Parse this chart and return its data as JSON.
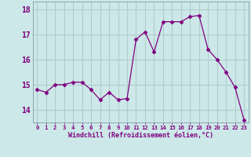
{
  "x": [
    0,
    1,
    2,
    3,
    4,
    5,
    6,
    7,
    8,
    9,
    10,
    11,
    12,
    13,
    14,
    15,
    16,
    17,
    18,
    19,
    20,
    21,
    22,
    23
  ],
  "y": [
    14.8,
    14.7,
    15.0,
    15.0,
    15.1,
    15.1,
    14.8,
    14.4,
    14.7,
    14.4,
    14.45,
    16.8,
    17.1,
    16.3,
    17.5,
    17.5,
    17.5,
    17.7,
    17.75,
    16.4,
    16.0,
    15.5,
    14.9,
    13.6
  ],
  "line_color": "#800080",
  "marker": "D",
  "marker_size": 2.5,
  "bg_color": "#cce8e8",
  "grid_color": "#b0cccc",
  "xlabel": "Windchill (Refroidissement éolien,°C)",
  "xlabel_color": "#800080",
  "tick_color": "#800080",
  "ylim": [
    13.5,
    18.3
  ],
  "xlim": [
    -0.5,
    23.5
  ],
  "yticks": [
    14,
    15,
    16,
    17,
    18
  ],
  "xticks": [
    0,
    1,
    2,
    3,
    4,
    5,
    6,
    7,
    8,
    9,
    10,
    11,
    12,
    13,
    14,
    15,
    16,
    17,
    18,
    19,
    20,
    21,
    22,
    23
  ]
}
